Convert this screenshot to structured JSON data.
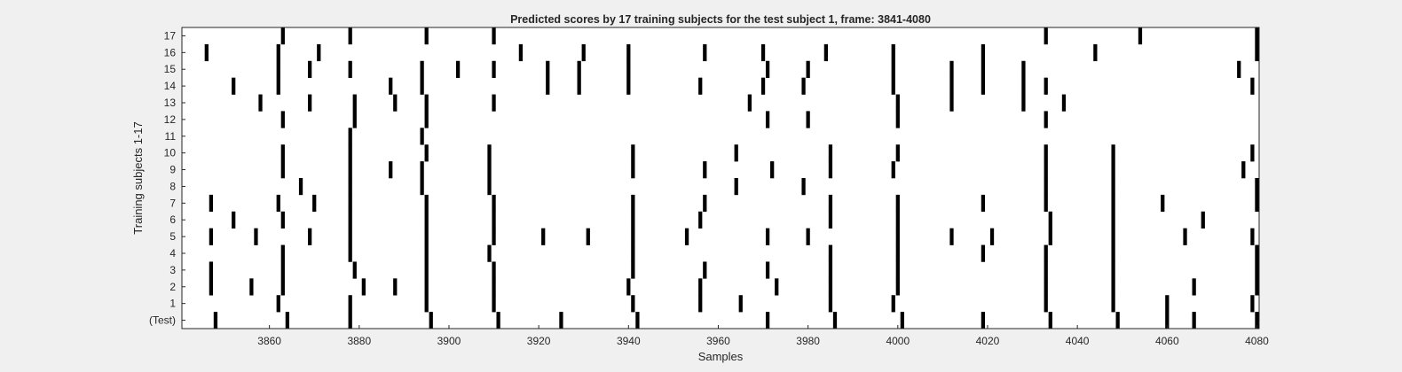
{
  "colors": {
    "figure_bg": "#f0f0f0",
    "axes_bg": "#ffffff",
    "mark": "#000000",
    "axis": "#262626"
  },
  "chart_data": {
    "type": "heatmap",
    "title": "Predicted scores by 17 training subjects for the test subject 1, frame: 3841-4080",
    "xlabel": "Samples",
    "ylabel": "Training subjects 1-17",
    "xlim": [
      3841,
      4080
    ],
    "x_ticks": [
      3860,
      3880,
      3900,
      3920,
      3940,
      3960,
      3980,
      4000,
      4020,
      4040,
      4060,
      4080
    ],
    "row_labels": [
      "17",
      "16",
      "15",
      "14",
      "13",
      "12",
      "11",
      "10",
      "9",
      "8",
      "7",
      "6",
      "5",
      "4",
      "3",
      "2",
      "1",
      "(Test)"
    ],
    "grid": false,
    "mark_width_samples": 1,
    "rows": [
      {
        "label": "17",
        "samples": [
          3863,
          3878,
          3895,
          3910,
          4033,
          4054,
          4080
        ]
      },
      {
        "label": "16",
        "samples": [
          3846,
          3862,
          3871,
          3916,
          3930,
          3940,
          3957,
          3970,
          3984,
          3999,
          4019,
          4044,
          4080
        ]
      },
      {
        "label": "15",
        "samples": [
          3862,
          3869,
          3878,
          3894,
          3902,
          3910,
          3922,
          3929,
          3940,
          3971,
          3980,
          3999,
          4012,
          4019,
          4028,
          4076
        ]
      },
      {
        "label": "14",
        "samples": [
          3852,
          3862,
          3887,
          3894,
          3922,
          3929,
          3940,
          3956,
          3970,
          3979,
          3999,
          4012,
          4019,
          4028,
          4033,
          4079
        ]
      },
      {
        "label": "13",
        "samples": [
          3858,
          3869,
          3879,
          3888,
          3895,
          3910,
          3967,
          4000,
          4012,
          4028,
          4037
        ]
      },
      {
        "label": "12",
        "samples": [
          3863,
          3879,
          3895,
          3971,
          3980,
          4000,
          4033
        ]
      },
      {
        "label": "11",
        "samples": [
          3878,
          3894
        ]
      },
      {
        "label": "10",
        "samples": [
          3863,
          3878,
          3895,
          3909,
          3941,
          3964,
          3985,
          4000,
          4033,
          4048,
          4079
        ]
      },
      {
        "label": "9",
        "samples": [
          3863,
          3878,
          3887,
          3894,
          3909,
          3941,
          3957,
          3972,
          3985,
          3999,
          4033,
          4048,
          4077
        ]
      },
      {
        "label": "8",
        "samples": [
          3867,
          3878,
          3894,
          3909,
          3964,
          3979,
          4033,
          4048,
          4080
        ]
      },
      {
        "label": "7",
        "samples": [
          3847,
          3862,
          3870,
          3878,
          3895,
          3910,
          3941,
          3957,
          3985,
          4000,
          4019,
          4033,
          4048,
          4059,
          4080
        ]
      },
      {
        "label": "6",
        "samples": [
          3852,
          3863,
          3878,
          3895,
          3910,
          3941,
          3956,
          3985,
          4000,
          4034,
          4048,
          4068
        ]
      },
      {
        "label": "5",
        "samples": [
          3847,
          3857,
          3869,
          3878,
          3895,
          3910,
          3921,
          3931,
          3941,
          3953,
          3971,
          3980,
          4000,
          4012,
          4021,
          4034,
          4048,
          4064,
          4079
        ]
      },
      {
        "label": "4",
        "samples": [
          3863,
          3878,
          3895,
          3909,
          3941,
          3985,
          4000,
          4019,
          4033,
          4048,
          4080
        ]
      },
      {
        "label": "3",
        "samples": [
          3847,
          3863,
          3879,
          3895,
          3910,
          3941,
          3957,
          3971,
          3985,
          4000,
          4033,
          4048,
          4080
        ]
      },
      {
        "label": "2",
        "samples": [
          3847,
          3856,
          3863,
          3881,
          3888,
          3895,
          3910,
          3940,
          3956,
          3973,
          3985,
          4000,
          4033,
          4048,
          4066,
          4080
        ]
      },
      {
        "label": "1",
        "samples": [
          3862,
          3878,
          3895,
          3910,
          3941,
          3956,
          3965,
          3985,
          3999,
          4033,
          4048,
          4060,
          4079
        ]
      },
      {
        "label": "(Test)",
        "samples": [
          3848,
          3864,
          3878,
          3896,
          3911,
          3925,
          3942,
          3971,
          3986,
          4001,
          4019,
          4034,
          4049,
          4060,
          4066,
          4080
        ]
      }
    ]
  }
}
